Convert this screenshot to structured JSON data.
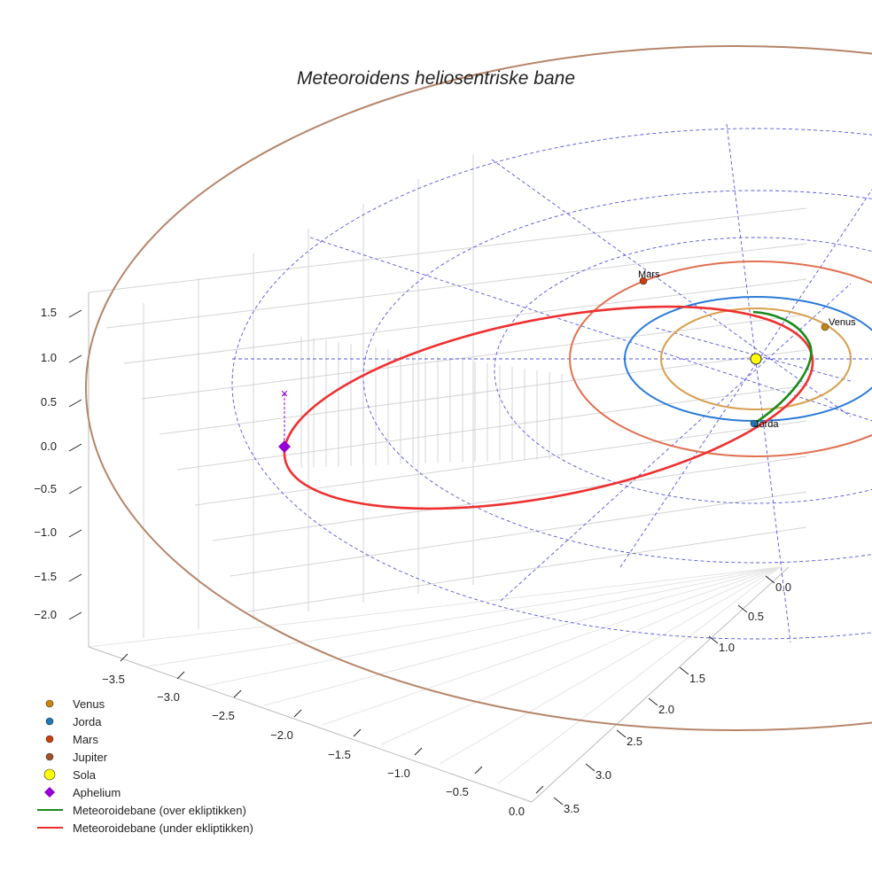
{
  "chart_data": {
    "type": "3d-line",
    "title": "Meteoroidens heliosentriske bane",
    "x_ticks": [
      "−3.5",
      "−3.0",
      "−2.5",
      "−2.0",
      "−1.5",
      "−1.0",
      "−0.5",
      "0.0"
    ],
    "y_ticks": [
      "0.0",
      "0.5",
      "1.0",
      "1.5",
      "2.0",
      "2.5",
      "3.0",
      "3.5"
    ],
    "z_ticks": [
      "1.5",
      "1.0",
      "0.5",
      "0.0",
      "−0.5",
      "−1.0",
      "−1.5",
      "−2.0"
    ],
    "xlim": [
      -3.7,
      0.1
    ],
    "ylim": [
      0,
      3.6
    ],
    "zlim": [
      -2.3,
      1.7
    ],
    "planet_labels": [
      "Mars",
      "Venus",
      "Jorda"
    ],
    "legend": [
      {
        "label": "Venus",
        "marker": "circle",
        "color": "#c8860f"
      },
      {
        "label": "Jorda",
        "marker": "circle",
        "color": "#1f77b4"
      },
      {
        "label": "Mars",
        "marker": "circle",
        "color": "#c8400f"
      },
      {
        "label": "Jupiter",
        "marker": "circle",
        "color": "#a0522d"
      },
      {
        "label": "Sola",
        "marker": "circle-large",
        "color": "#ffff00"
      },
      {
        "label": "Aphelium",
        "marker": "diamond",
        "color": "#9400d3"
      },
      {
        "label": "Meteoroidebane (over ekliptikken)",
        "marker": "line",
        "color": "#1a8a1a"
      },
      {
        "label": "Meteoroidebane (under ekliptikken)",
        "marker": "line",
        "color": "#ee2a2a"
      }
    ],
    "legend_position": "lower-left"
  }
}
